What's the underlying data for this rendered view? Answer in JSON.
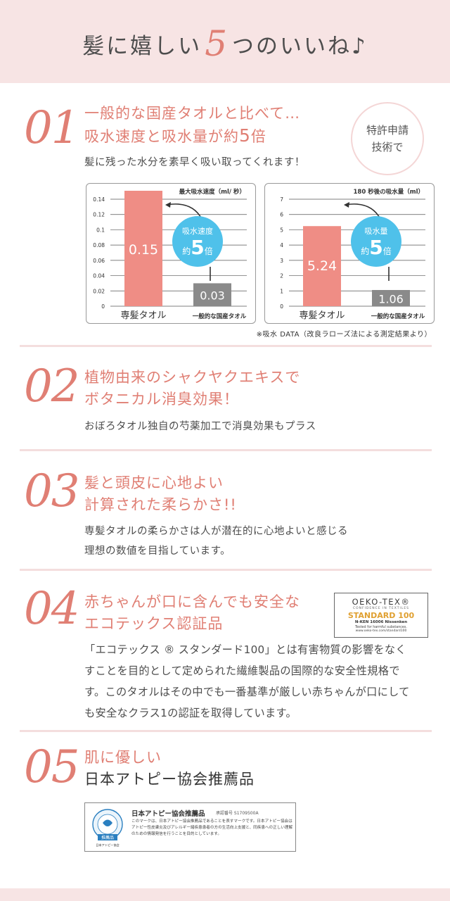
{
  "header": {
    "title_pre": "髪に嬉しい",
    "title_num": "5",
    "title_post": "つのいいね♪"
  },
  "sections": [
    {
      "num": "01",
      "headline_line1": "一般的な国産タオルと比べて…",
      "headline_line2_pre": "吸水速度と吸水量が約",
      "headline_line2_num": "5",
      "headline_line2_post": "倍",
      "desc": "髪に残った水分を素早く吸い取ってくれます！",
      "badge_line1": "特許申請",
      "badge_line2": "技術で"
    },
    {
      "num": "02",
      "headline_line1": "植物由来のシャクヤクエキスで",
      "headline_line2": "ボタニカル消臭効果！",
      "desc": "おぼろタオル独自の芍薬加工で消臭効果もプラス"
    },
    {
      "num": "03",
      "headline_line1": "髪と頭皮に心地よい",
      "headline_line2": "計算された柔らかさ!!",
      "desc_line1": "専髪タオルの柔らかさは人が潜在的に心地よいと感じる",
      "desc_line2": "理想の数値を目指しています。"
    },
    {
      "num": "04",
      "headline_line1": "赤ちゃんが口に含んでも安全な",
      "headline_line2": "エコテックス認証品",
      "desc_line1": "「エコテックス ® スタンダード100」とは有害物質の影響をなく",
      "desc_line2": "すことを目的として定められた繊維製品の国際的な安全性規格で",
      "desc_line3": "す。このタオルはその中でも一番基準が厳しい赤ちゃんが口にして",
      "desc_line4": "も安全なクラス1の認証を取得しています。",
      "oeko": {
        "title": "OEKO-TEX®",
        "confidence": "CONFIDENCE IN TEXTILES",
        "standard": "STANDARD 100",
        "nken": "N-KEN 16006 Nissenken",
        "tested": "Tested for harmful substances.",
        "url": "www.oeko-tex.com/standard100"
      }
    },
    {
      "num": "05",
      "headline_line1": "肌に優しい",
      "headline_line2": "日本アトピー協会推薦品",
      "atopy": {
        "title": "日本アトピー協会推薦品",
        "reg": "承認番号 S1709500A",
        "body": "このマークは、日本アトピー協会推薦品であることを表すマークです。日本アトピー協会はアトピー性皮膚炎及びアレルギー諸疾患患者の方の生活向上支援と、同疾患への正しい理解のための情報発信を行うことを目的としています。",
        "logo_label": "推薦品",
        "logo_sub": "日本アトピー協会"
      }
    }
  ],
  "chart_data": [
    {
      "type": "bar",
      "title": "最大吸水速度（ml/ 秒）",
      "categories": [
        "専髪タオル",
        "一般的な国産タオル"
      ],
      "values": [
        0.15,
        0.03
      ],
      "value_labels": [
        "0.15",
        "0.03"
      ],
      "ylim": [
        0,
        0.14
      ],
      "yticks": [
        "0",
        "0.02",
        "0.04",
        "0.06",
        "0.08",
        "0.1",
        "0.12",
        "0.14"
      ],
      "badge_line1": "吸水速度",
      "badge_pre": "約",
      "badge_num": "5",
      "badge_post": "倍",
      "colors": [
        "#ef8d85",
        "#8a8a8a"
      ],
      "grid": true
    },
    {
      "type": "bar",
      "title": "180 秒後の吸水量（ml）",
      "categories": [
        "専髪タオル",
        "一般的な国産タオル"
      ],
      "values": [
        5.24,
        1.06
      ],
      "value_labels": [
        "5.24",
        "1.06"
      ],
      "ylim": [
        0,
        7
      ],
      "yticks": [
        "0",
        "1",
        "2",
        "3",
        "4",
        "5",
        "6",
        "7"
      ],
      "badge_line1": "吸水量",
      "badge_pre": "約",
      "badge_num": "5",
      "badge_post": "倍",
      "colors": [
        "#ef8d85",
        "#8a8a8a"
      ],
      "grid": true
    }
  ],
  "chart_note": "※吸水 DATA（改良ラローズ法による測定結果より）",
  "colors": {
    "accent": "#e07f74",
    "band": "#f7e4e4",
    "badge": "#4fc1ea"
  }
}
